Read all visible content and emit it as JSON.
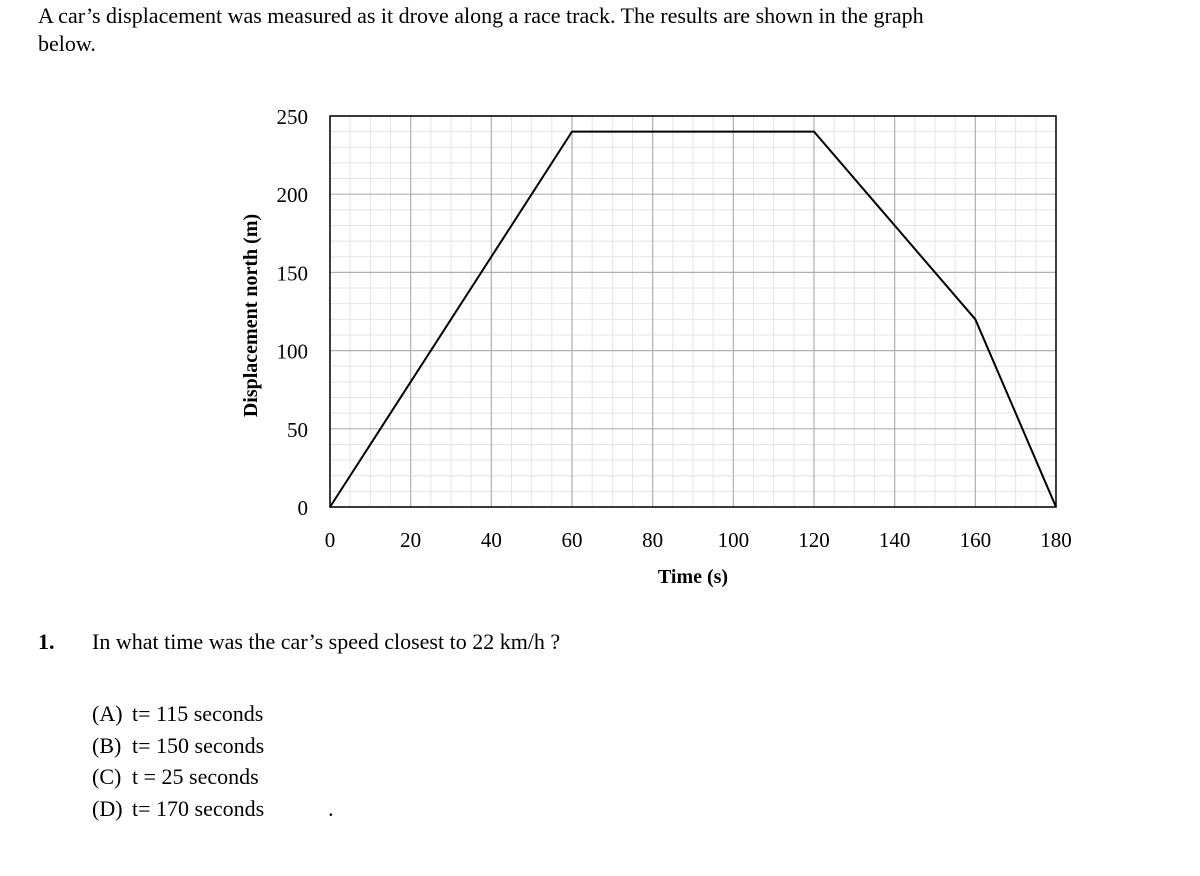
{
  "intro": {
    "line1": "A car’s displacement was measured as it drove along a race track. The results are shown in the graph",
    "line2": "below."
  },
  "chart_data": {
    "type": "line",
    "title": "",
    "xlabel": "Time (s)",
    "ylabel": "Displacement north (m)",
    "xlim": [
      0,
      180
    ],
    "ylim": [
      0,
      250
    ],
    "x_ticks": [
      0,
      20,
      40,
      60,
      80,
      100,
      120,
      140,
      160,
      180
    ],
    "y_ticks": [
      0,
      50,
      100,
      150,
      200,
      250
    ],
    "grid": true,
    "series": [
      {
        "x": [
          0,
          60,
          120,
          160,
          180
        ],
        "y": [
          0,
          240,
          240,
          120,
          0
        ]
      }
    ],
    "line_color": "#000000",
    "major_grid_color": "#b0b0b0",
    "minor_grid_color": "#e4e4e4"
  },
  "question": {
    "number": "1.",
    "text": "In what time was the car’s speed closest to 22 km/h ?",
    "options": [
      {
        "letter": "(A)",
        "text": "t= 115 seconds",
        "trail": ""
      },
      {
        "letter": "(B)",
        "text": "t= 150 seconds",
        "trail": ""
      },
      {
        "letter": "(C)",
        "text": "t = 25 seconds",
        "trail": ""
      },
      {
        "letter": "(D)",
        "text": "t= 170 seconds",
        "trail": "."
      }
    ]
  }
}
